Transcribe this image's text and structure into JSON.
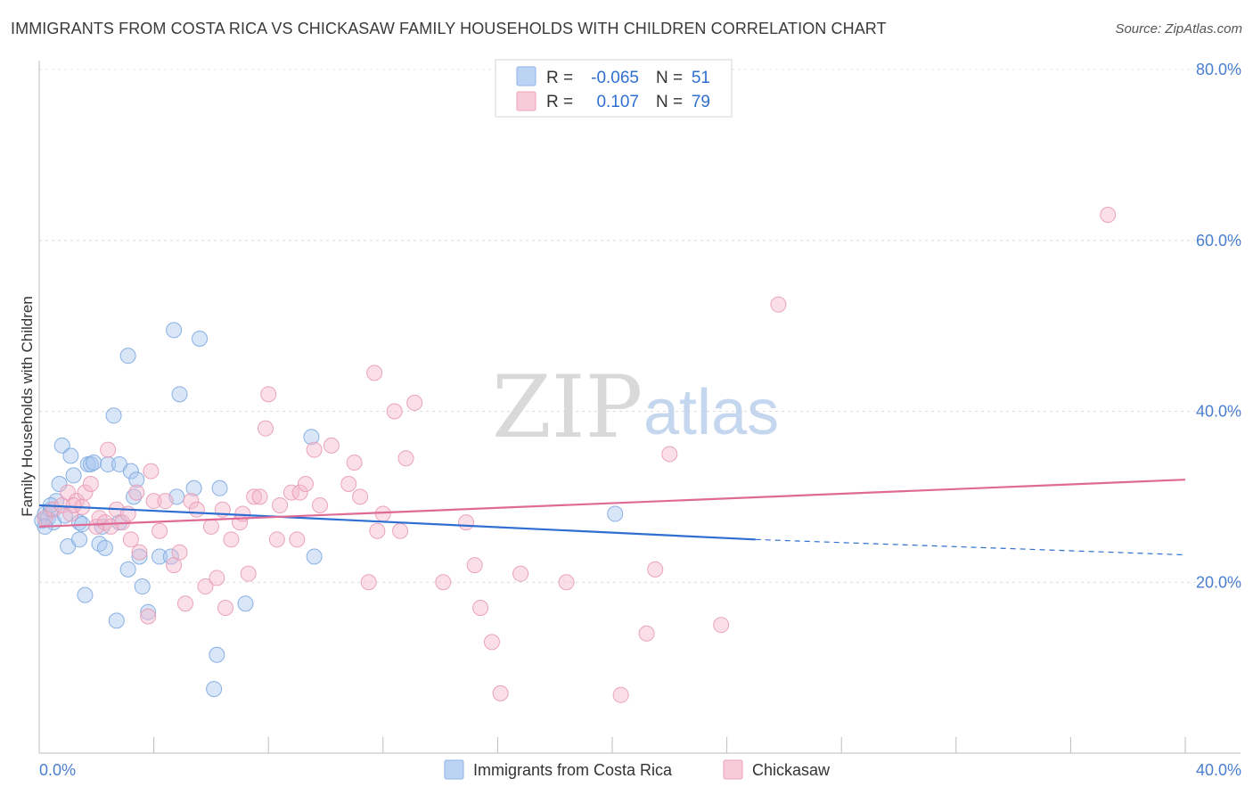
{
  "title": "IMMIGRANTS FROM COSTA RICA VS CHICKASAW FAMILY HOUSEHOLDS WITH CHILDREN CORRELATION CHART",
  "source": "Source: ZipAtlas.com",
  "watermark": {
    "zip": "ZIP",
    "atlas": "atlas"
  },
  "legend": {
    "rows": [
      {
        "r_label": "R =",
        "r_value": "-0.065",
        "n_label": "N =",
        "n_value": "51",
        "color": "#a8c8f0"
      },
      {
        "r_label": "R =",
        "r_value": "0.107",
        "n_label": "N =",
        "n_value": "79",
        "color": "#f5b8cc"
      }
    ]
  },
  "chart_data": {
    "type": "scatter",
    "title": "IMMIGRANTS FROM COSTA RICA VS CHICKASAW FAMILY HOUSEHOLDS WITH CHILDREN CORRELATION CHART",
    "xlabel": "",
    "ylabel": "Family Households with Children",
    "xlim": [
      0,
      40
    ],
    "ylim": [
      0,
      80
    ],
    "x_tick_labels": [
      "0.0%",
      "40.0%"
    ],
    "y_ticks": [
      20,
      40,
      60,
      80
    ],
    "y_tick_labels": [
      "20.0%",
      "40.0%",
      "60.0%",
      "80.0%"
    ],
    "grid": true,
    "legend_position": "bottom",
    "series": [
      {
        "name": "Immigrants from Costa Rica",
        "color": "#a8c8f0",
        "line_color": "#2f6fd1",
        "points": [
          [
            0.1,
            27.2
          ],
          [
            0.2,
            28.0
          ],
          [
            0.3,
            27.5
          ],
          [
            0.4,
            28.5
          ],
          [
            0.5,
            27.0
          ],
          [
            0.6,
            29.5
          ],
          [
            0.7,
            31.5
          ],
          [
            0.8,
            36.0
          ],
          [
            0.9,
            27.8
          ],
          [
            1.0,
            24.2
          ],
          [
            1.1,
            34.8
          ],
          [
            1.2,
            32.5
          ],
          [
            1.4,
            27.0
          ],
          [
            1.4,
            25.0
          ],
          [
            1.5,
            26.8
          ],
          [
            1.6,
            18.5
          ],
          [
            1.7,
            33.8
          ],
          [
            1.8,
            33.8
          ],
          [
            1.9,
            34.0
          ],
          [
            2.1,
            24.5
          ],
          [
            2.2,
            26.5
          ],
          [
            2.3,
            24.0
          ],
          [
            2.4,
            33.8
          ],
          [
            2.6,
            39.5
          ],
          [
            2.7,
            15.5
          ],
          [
            2.8,
            27.0
          ],
          [
            2.8,
            33.8
          ],
          [
            3.1,
            46.5
          ],
          [
            3.1,
            21.5
          ],
          [
            3.2,
            33.0
          ],
          [
            3.3,
            30.0
          ],
          [
            3.4,
            32.0
          ],
          [
            3.5,
            23.0
          ],
          [
            3.6,
            19.5
          ],
          [
            3.8,
            16.5
          ],
          [
            4.2,
            23.0
          ],
          [
            4.6,
            23.0
          ],
          [
            4.7,
            49.5
          ],
          [
            4.8,
            30.0
          ],
          [
            4.9,
            42.0
          ],
          [
            5.4,
            31.0
          ],
          [
            5.6,
            48.5
          ],
          [
            6.1,
            7.5
          ],
          [
            6.2,
            11.5
          ],
          [
            6.3,
            31.0
          ],
          [
            7.2,
            17.5
          ],
          [
            9.5,
            37.0
          ],
          [
            9.6,
            23.0
          ],
          [
            20.1,
            28.0
          ],
          [
            0.2,
            26.5
          ],
          [
            0.4,
            29.0
          ]
        ],
        "trend": {
          "x": [
            0,
            25
          ],
          "y": [
            29.0,
            25.0
          ],
          "dashed_to": [
            40,
            23.2
          ]
        }
      },
      {
        "name": "Chickasaw",
        "color": "#f5b8cc",
        "line_color": "#e06a96",
        "points": [
          [
            0.2,
            27.5
          ],
          [
            0.5,
            28.5
          ],
          [
            0.8,
            29.0
          ],
          [
            1.0,
            30.5
          ],
          [
            1.1,
            28.0
          ],
          [
            1.3,
            29.5
          ],
          [
            1.5,
            28.8
          ],
          [
            1.6,
            30.5
          ],
          [
            1.8,
            31.5
          ],
          [
            2.0,
            26.5
          ],
          [
            2.1,
            27.5
          ],
          [
            2.3,
            27.0
          ],
          [
            2.4,
            35.5
          ],
          [
            2.5,
            26.5
          ],
          [
            2.7,
            28.5
          ],
          [
            2.9,
            27.0
          ],
          [
            3.1,
            28.0
          ],
          [
            3.2,
            25.0
          ],
          [
            3.4,
            30.5
          ],
          [
            3.5,
            23.5
          ],
          [
            3.8,
            16.0
          ],
          [
            3.9,
            33.0
          ],
          [
            4.0,
            29.5
          ],
          [
            4.2,
            26.0
          ],
          [
            4.4,
            29.5
          ],
          [
            4.7,
            22.0
          ],
          [
            4.9,
            23.5
          ],
          [
            5.1,
            17.5
          ],
          [
            5.3,
            29.5
          ],
          [
            5.5,
            28.5
          ],
          [
            5.8,
            19.5
          ],
          [
            6.0,
            26.5
          ],
          [
            6.2,
            20.5
          ],
          [
            6.4,
            28.5
          ],
          [
            6.5,
            17.0
          ],
          [
            6.7,
            25.0
          ],
          [
            7.0,
            27.0
          ],
          [
            7.1,
            28.0
          ],
          [
            7.3,
            21.0
          ],
          [
            7.5,
            30.0
          ],
          [
            7.7,
            30.0
          ],
          [
            7.9,
            38.0
          ],
          [
            8.0,
            42.0
          ],
          [
            8.3,
            25.0
          ],
          [
            8.4,
            29.0
          ],
          [
            8.8,
            30.5
          ],
          [
            9.0,
            25.0
          ],
          [
            9.1,
            30.5
          ],
          [
            9.3,
            31.5
          ],
          [
            9.6,
            35.5
          ],
          [
            9.8,
            29.0
          ],
          [
            10.2,
            36.0
          ],
          [
            10.8,
            31.5
          ],
          [
            11.0,
            34.0
          ],
          [
            11.2,
            30.0
          ],
          [
            11.5,
            20.0
          ],
          [
            11.7,
            44.5
          ],
          [
            11.8,
            26.0
          ],
          [
            12.0,
            28.0
          ],
          [
            12.4,
            40.0
          ],
          [
            12.6,
            26.0
          ],
          [
            12.8,
            34.5
          ],
          [
            13.1,
            41.0
          ],
          [
            14.1,
            20.0
          ],
          [
            14.9,
            27.0
          ],
          [
            15.2,
            22.0
          ],
          [
            15.4,
            17.0
          ],
          [
            15.8,
            13.0
          ],
          [
            16.1,
            7.0
          ],
          [
            16.8,
            21.0
          ],
          [
            18.4,
            20.0
          ],
          [
            20.3,
            6.8
          ],
          [
            21.2,
            14.0
          ],
          [
            21.5,
            21.5
          ],
          [
            22.0,
            35.0
          ],
          [
            23.8,
            15.0
          ],
          [
            25.8,
            52.5
          ],
          [
            37.3,
            63.0
          ],
          [
            1.2,
            29.0
          ]
        ],
        "trend": {
          "x": [
            0,
            40
          ],
          "y": [
            26.5,
            32.0
          ]
        }
      }
    ]
  }
}
